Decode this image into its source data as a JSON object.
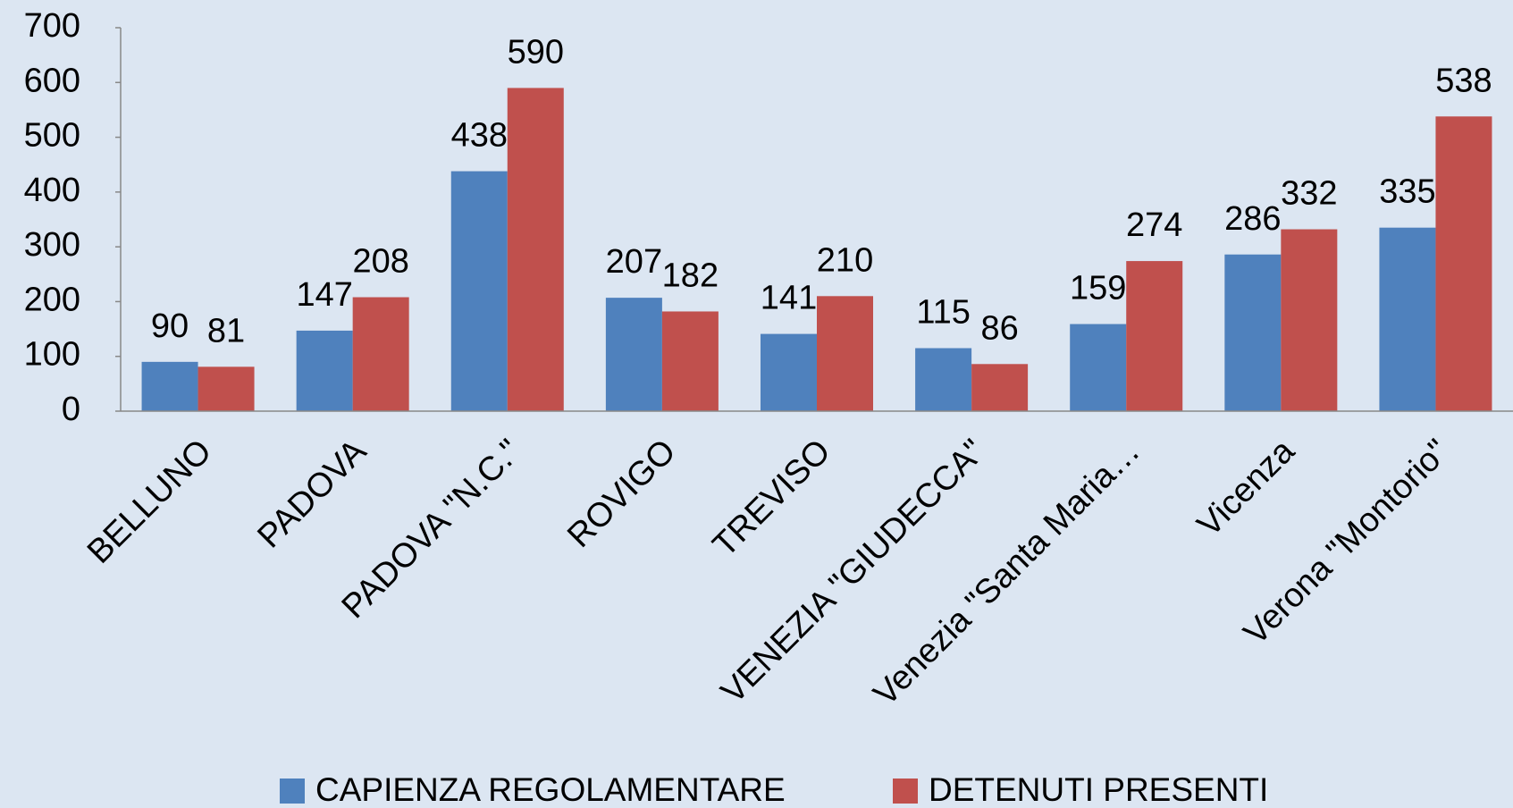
{
  "chart_data": {
    "type": "bar",
    "categories": [
      "BELLUNO",
      "PADOVA",
      "PADOVA \"N.C.\"",
      "ROVIGO",
      "TREVISO",
      "VENEZIA \"GIUDECCA\"",
      "Venezia \"Santa Maria…",
      "Vicenza",
      "Verona \"Montorio\""
    ],
    "series": [
      {
        "name": "CAPIENZA REGOLAMENTARE",
        "color": "#4f81bd",
        "values": [
          90,
          147,
          438,
          207,
          141,
          115,
          159,
          286,
          335
        ]
      },
      {
        "name": "DETENUTI PRESENTI",
        "color": "#c0504d",
        "values": [
          81,
          208,
          590,
          182,
          210,
          86,
          274,
          332,
          538
        ]
      }
    ],
    "ylim": [
      0,
      700
    ],
    "yticks": [
      0,
      100,
      200,
      300,
      400,
      500,
      600,
      700
    ],
    "grid": false,
    "legend": "bottom"
  }
}
